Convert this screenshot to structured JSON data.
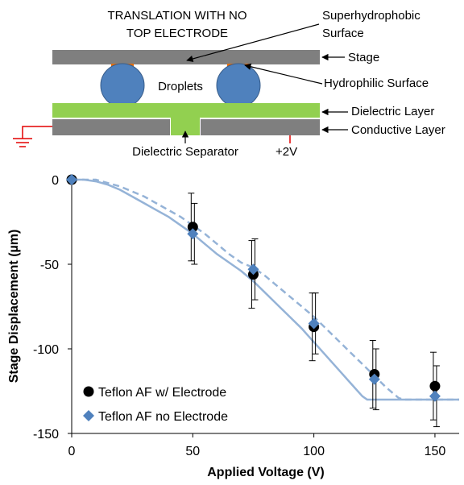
{
  "colors": {
    "gray_layer": "#7f7f7f",
    "droplet": "#4f81bd",
    "dielectric": "#92d050",
    "hydrophilic": "#e46c0a",
    "ground_wire": "#e30000",
    "series_electrode": "#000000",
    "series_no_electrode": "#4f81bd",
    "model_line": "#95b3d7"
  },
  "schematic": {
    "title_line1": "TRANSLATION WITH NO",
    "title_line2": "TOP ELECTRODE",
    "label_superhydrophobic_1": "Superhydrophobic",
    "label_superhydrophobic_2": "Surface",
    "label_stage": "Stage",
    "label_droplets": "Droplets",
    "label_hydrophilic": "Hydrophilic Surface",
    "label_dielectric_layer": "Dielectric Layer",
    "label_conductive_layer": "Conductive Layer",
    "label_dielectric_separator": "Dielectric Separator",
    "label_voltage": "+2V"
  },
  "chart_data": {
    "type": "scatter",
    "xlabel": "Applied Voltage (V)",
    "ylabel": "Stage Displacement (µm)",
    "xlim": [
      0,
      160
    ],
    "ylim": [
      -150,
      0
    ],
    "xticks": [
      0,
      50,
      100,
      150
    ],
    "yticks": [
      0,
      -50,
      -100,
      -150
    ],
    "xtick_labels": [
      "0",
      "50",
      "100",
      "150"
    ],
    "ytick_labels": [
      "0",
      "-50",
      "-100",
      "-150"
    ],
    "grid": false,
    "legend_position": "bottom-left",
    "series": [
      {
        "name": "Teflon AF w/ Electrode",
        "marker": "circle",
        "x": [
          0,
          50,
          75,
          100,
          125,
          150
        ],
        "y": [
          0,
          -28,
          -56,
          -87,
          -115,
          -122
        ],
        "err": [
          0,
          20,
          20,
          20,
          20,
          20
        ]
      },
      {
        "name": "Teflon AF no Electrode",
        "marker": "diamond",
        "x": [
          0,
          50,
          75,
          100,
          125,
          150
        ],
        "y": [
          0,
          -32,
          -53,
          -85,
          -118,
          -128
        ],
        "err": [
          0,
          18,
          18,
          18,
          18,
          18
        ]
      }
    ],
    "model_curves": [
      {
        "style": "solid",
        "x": [
          0,
          5,
          10,
          15,
          20,
          25,
          30,
          35,
          40,
          45,
          50,
          55,
          60,
          65,
          70,
          75,
          80,
          85,
          90,
          95,
          100,
          105,
          110,
          115,
          120,
          122,
          130,
          140,
          150,
          160
        ],
        "y": [
          0,
          0,
          -1,
          -3,
          -6,
          -10,
          -14,
          -18,
          -22,
          -27,
          -32,
          -38,
          -44,
          -49,
          -54,
          -60,
          -67,
          -74,
          -81,
          -88,
          -96,
          -104,
          -112,
          -120,
          -128,
          -130,
          -130,
          -130,
          -130,
          -130
        ]
      },
      {
        "style": "dashed",
        "x": [
          0,
          5,
          10,
          15,
          20,
          25,
          30,
          35,
          40,
          45,
          50,
          55,
          60,
          65,
          70,
          75,
          80,
          85,
          90,
          95,
          100,
          105,
          110,
          115,
          120,
          125,
          130,
          135,
          137,
          145,
          150,
          160
        ],
        "y": [
          0,
          0,
          0,
          -2,
          -4,
          -7,
          -10,
          -14,
          -18,
          -22,
          -27,
          -32,
          -38,
          -44,
          -49,
          -52,
          -57,
          -63,
          -69,
          -75,
          -81,
          -88,
          -95,
          -102,
          -109,
          -116,
          -123,
          -129,
          -130,
          -130,
          -130,
          -130
        ]
      }
    ]
  }
}
